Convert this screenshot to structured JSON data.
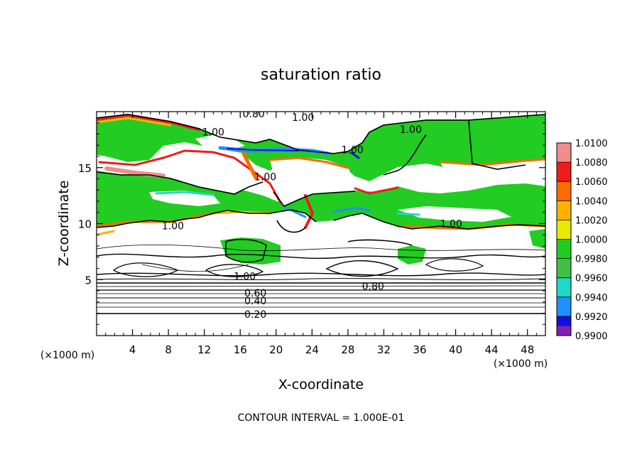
{
  "chart_data": {
    "type": "heatmap",
    "title": "saturation ratio",
    "xlabel": "X-coordinate",
    "ylabel": "Z-coordinate",
    "x_unit_left": "(×1000 m)",
    "x_unit_right": "(×1000 m)",
    "footer": "CONTOUR INTERVAL = 1.000E-01",
    "xlim": [
      0,
      50
    ],
    "ylim": [
      0,
      20
    ],
    "x_ticks": [
      4,
      8,
      12,
      16,
      20,
      24,
      28,
      32,
      36,
      40,
      44,
      48
    ],
    "y_ticks": [
      5,
      10,
      15
    ],
    "colorbar": {
      "levels": [
        "1.0100",
        "1.0080",
        "1.0060",
        "1.0040",
        "1.0020",
        "1.0000",
        "0.9980",
        "0.9960",
        "0.9940",
        "0.9920",
        "0.9900"
      ],
      "colors": [
        "#f08c8c",
        "#ee1c1c",
        "#ff6a00",
        "#ffb000",
        "#e8e800",
        "#22cc22",
        "#40c040",
        "#20d8c8",
        "#2090ff",
        "#1010e0",
        "#8020b0"
      ]
    },
    "contour_labels": [
      {
        "text": "0.80",
        "x": 17.5,
        "z": 19.8
      },
      {
        "text": "1.00",
        "x": 23,
        "z": 19.5
      },
      {
        "text": "1.00",
        "x": 13,
        "z": 18.2
      },
      {
        "text": "1.00",
        "x": 35,
        "z": 18.4
      },
      {
        "text": "1.00",
        "x": 28.5,
        "z": 16.6
      },
      {
        "text": "1.00",
        "x": 18.8,
        "z": 14.2
      },
      {
        "text": "1.00",
        "x": 8.5,
        "z": 9.8
      },
      {
        "text": "1.00",
        "x": 39.5,
        "z": 10.0
      },
      {
        "text": "1.00",
        "x": 16.5,
        "z": 5.3
      },
      {
        "text": "0.80",
        "x": 30.8,
        "z": 4.4
      },
      {
        "text": "0.60",
        "x": 17.7,
        "z": 3.8
      },
      {
        "text": "0.40",
        "x": 17.7,
        "z": 3.1
      },
      {
        "text": "0.20",
        "x": 17.7,
        "z": 1.9
      }
    ]
  }
}
